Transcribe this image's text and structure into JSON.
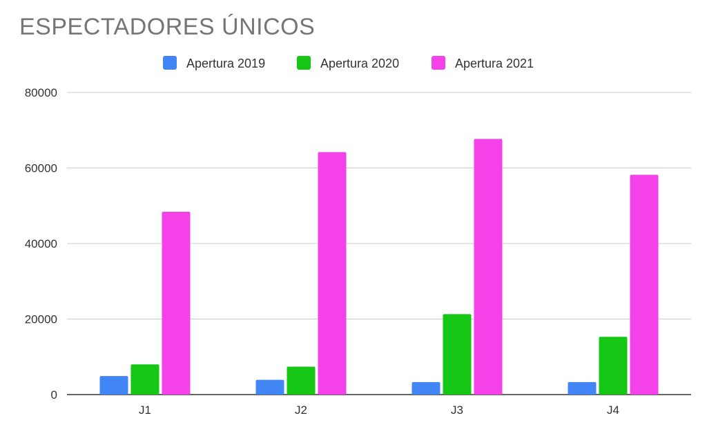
{
  "chart_data": {
    "type": "bar",
    "title": "ESPECTADORES ÚNICOS",
    "xlabel": "",
    "ylabel": "",
    "categories": [
      "J1",
      "J2",
      "J3",
      "J4"
    ],
    "series": [
      {
        "name": "Apertura 2019",
        "color": "#4285f4",
        "values": [
          4900,
          3900,
          3300,
          3300
        ]
      },
      {
        "name": "Apertura 2020",
        "color": "#15c615",
        "values": [
          8000,
          7400,
          21300,
          15300
        ]
      },
      {
        "name": "Apertura 2021",
        "color": "#f542e8",
        "values": [
          48400,
          64200,
          67700,
          58200
        ]
      }
    ],
    "ylim": [
      0,
      80000
    ],
    "yticks": [
      0,
      20000,
      40000,
      60000,
      80000
    ],
    "grid": true,
    "legend_position": "top-center"
  }
}
